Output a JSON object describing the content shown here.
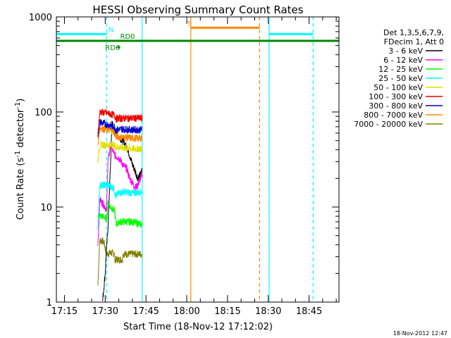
{
  "chart_data": {
    "type": "line",
    "title": "HESSI Observing Summary Count Rates",
    "xlabel": "Start Time (18-Nov-12 17:12:02)",
    "ylabel_main": "Count Rate (s",
    "ylabel_sup1": "-1",
    "ylabel_mid": " detector",
    "ylabel_sup2": "-1",
    "ylabel_end": ")",
    "y_scale": "log",
    "ylim": [
      1,
      1000
    ],
    "xlim_minutes": [
      17.2,
      17.23,
      18.93
    ],
    "x_ticks": [
      {
        "label": "17:15",
        "minutes": 1035
      },
      {
        "label": "17:30",
        "minutes": 1050
      },
      {
        "label": "17:45",
        "minutes": 1065
      },
      {
        "label": "18:00",
        "minutes": 1080
      },
      {
        "label": "18:15",
        "minutes": 1095
      },
      {
        "label": "18:30",
        "minutes": 1110
      },
      {
        "label": "18:45",
        "minutes": 1125
      }
    ],
    "x_range_minutes": [
      1032.03,
      1136.0
    ],
    "y_ticks": [
      {
        "label": "1",
        "value": 1
      },
      {
        "label": "10",
        "value": 10
      },
      {
        "label": "100",
        "value": 100
      },
      {
        "label": "1000",
        "value": 1000
      }
    ],
    "legend": {
      "header1": "Det 1,3,5,6,7,9,",
      "header2": "FDecim 1, Att 0",
      "entries": [
        {
          "label": "3 - 6 keV",
          "color": "#000000"
        },
        {
          "label": "6 - 12 keV",
          "color": "#ff00ff"
        },
        {
          "label": "12 - 25 keV",
          "color": "#00ff00"
        },
        {
          "label": "25 - 50 keV",
          "color": "#00ffff"
        },
        {
          "label": "50 - 100 keV",
          "color": "#e0e000"
        },
        {
          "label": "100 - 300 keV",
          "color": "#ee0000"
        },
        {
          "label": "300 - 800 keV",
          "color": "#0000cc"
        },
        {
          "label": "800 - 7000 keV",
          "color": "#ff8800"
        },
        {
          "label": "7000 - 20000 keV",
          "color": "#808000"
        }
      ]
    },
    "series": [
      {
        "color": "#808000",
        "start": 1047.3,
        "end": 1053.5,
        "points": [
          [
            1047.3,
            1.5
          ],
          [
            1048,
            4.5
          ],
          [
            1049.5,
            4.3
          ],
          [
            1050.5,
            3.2
          ],
          [
            1052,
            3.3
          ],
          [
            1053.5,
            3.2
          ]
        ]
      },
      {
        "color": "#808000",
        "start": 1053.5,
        "end": 1056.5,
        "points": [
          [
            1053.5,
            2.8
          ],
          [
            1055,
            2.8
          ],
          [
            1056.5,
            2.8
          ]
        ]
      },
      {
        "color": "#808000",
        "start": 1056.5,
        "end": 1063.6,
        "points": [
          [
            1056.5,
            3.2
          ],
          [
            1060,
            3.2
          ],
          [
            1063.6,
            3.2
          ]
        ]
      },
      {
        "color": "#000000",
        "start": 1049.0,
        "end": 1063.6,
        "points": [
          [
            1049,
            1.0
          ],
          [
            1050,
            2.0
          ],
          [
            1050.3,
            3.0
          ],
          [
            1051,
            6
          ],
          [
            1052,
            30
          ],
          [
            1052.5,
            80
          ],
          [
            1053.5,
            60
          ],
          [
            1055,
            55
          ],
          [
            1056.5,
            50
          ],
          [
            1058,
            42
          ],
          [
            1059,
            35
          ],
          [
            1060,
            28
          ],
          [
            1061,
            24
          ],
          [
            1062,
            20
          ],
          [
            1063,
            22
          ],
          [
            1063.6,
            25
          ]
        ]
      },
      {
        "color": "#ff00ff",
        "start": 1047.3,
        "end": 1063.6,
        "points": [
          [
            1047.3,
            4
          ],
          [
            1048,
            12
          ],
          [
            1049,
            11
          ],
          [
            1050,
            10
          ],
          [
            1050.5,
            9
          ],
          [
            1051,
            30
          ],
          [
            1052,
            45
          ],
          [
            1053.5,
            35
          ],
          [
            1055,
            33
          ],
          [
            1056.5,
            28
          ],
          [
            1058,
            25
          ],
          [
            1059,
            20
          ],
          [
            1060,
            18
          ],
          [
            1061,
            16
          ],
          [
            1062,
            17
          ],
          [
            1063,
            20
          ],
          [
            1063.6,
            22
          ]
        ]
      },
      {
        "color": "#00ff00",
        "start": 1047.3,
        "end": 1063.6,
        "points": [
          [
            1047.3,
            8
          ],
          [
            1049,
            8
          ],
          [
            1050.5,
            7.5
          ],
          [
            1051,
            11
          ],
          [
            1052,
            10
          ],
          [
            1053.5,
            9
          ],
          [
            1054,
            6.5
          ],
          [
            1055,
            7
          ],
          [
            1056.5,
            7
          ],
          [
            1060,
            7
          ],
          [
            1063.6,
            6.5
          ]
        ]
      },
      {
        "color": "#00ffff",
        "start": 1047.3,
        "end": 1063.6,
        "points": [
          [
            1047.3,
            6
          ],
          [
            1048,
            17
          ],
          [
            1050,
            17
          ],
          [
            1051,
            17
          ],
          [
            1053,
            16
          ],
          [
            1054,
            13
          ],
          [
            1055,
            14
          ],
          [
            1056.5,
            14.5
          ],
          [
            1060,
            14
          ],
          [
            1063.6,
            14.5
          ]
        ]
      },
      {
        "color": "#e0e000",
        "start": 1047.3,
        "end": 1063.6,
        "points": [
          [
            1047.3,
            30
          ],
          [
            1048,
            45
          ],
          [
            1051,
            45
          ],
          [
            1053,
            45
          ],
          [
            1054,
            43
          ],
          [
            1056.5,
            42
          ],
          [
            1060,
            41
          ],
          [
            1063.6,
            41
          ]
        ]
      },
      {
        "color": "#ff8800",
        "start": 1047.3,
        "end": 1063.6,
        "points": [
          [
            1047.3,
            45
          ],
          [
            1048,
            68
          ],
          [
            1051,
            65
          ],
          [
            1053,
            63
          ],
          [
            1054,
            55
          ],
          [
            1056.5,
            54
          ],
          [
            1060,
            53
          ],
          [
            1063.6,
            53
          ]
        ]
      },
      {
        "color": "#0000cc",
        "start": 1047.3,
        "end": 1063.6,
        "points": [
          [
            1047.3,
            55
          ],
          [
            1048,
            78
          ],
          [
            1050,
            75
          ],
          [
            1052,
            72
          ],
          [
            1053.5,
            70
          ],
          [
            1054,
            65
          ],
          [
            1056.5,
            66
          ],
          [
            1060,
            65
          ],
          [
            1063.6,
            65
          ]
        ]
      },
      {
        "color": "#ee0000",
        "start": 1047.3,
        "end": 1063.6,
        "points": [
          [
            1047.3,
            60
          ],
          [
            1048,
            100
          ],
          [
            1050,
            98
          ],
          [
            1052,
            95
          ],
          [
            1053.5,
            92
          ],
          [
            1054,
            85
          ],
          [
            1056.5,
            86
          ],
          [
            1060,
            86
          ],
          [
            1063.6,
            86
          ]
        ]
      }
    ],
    "flag_bars": [
      {
        "label": "N",
        "color": "#00ffff",
        "value": 660,
        "start": 1032.03,
        "end": 1050.5,
        "label_at": 1051.2
      },
      {
        "label": "",
        "color": "#00ffff",
        "value": 660,
        "start": 1110.3,
        "end": 1126.5,
        "label_at": null
      },
      {
        "label": "S",
        "color": "#ff8800",
        "value": 770,
        "start": 1081.5,
        "end": 1106.8,
        "label_at": 1080.2
      },
      {
        "label": "RD0",
        "color": "#008800",
        "value": 560,
        "start": 1032.03,
        "end": 1136.0,
        "label_at": 1055.5
      }
    ],
    "rd6": {
      "label": "RD6",
      "color": "#008800",
      "value": 480,
      "start": 1054.5,
      "end": 1055.5,
      "label_at": 1050.0
    },
    "vertical_lines": [
      {
        "minutes": 1032.03,
        "color": "#00ffff",
        "style": "solid"
      },
      {
        "minutes": 1050.5,
        "color": "#00ffff",
        "style": "dashed"
      },
      {
        "minutes": 1063.6,
        "color": "#00ffff",
        "style": "solid"
      },
      {
        "minutes": 1081.5,
        "color": "#ff8800",
        "style": "solid"
      },
      {
        "minutes": 1106.8,
        "color": "#ff8800",
        "style": "dashed"
      },
      {
        "minutes": 1110.3,
        "color": "#00ffff",
        "style": "solid"
      },
      {
        "minutes": 1126.5,
        "color": "#00ffff",
        "style": "dashed"
      }
    ],
    "timestamp": "18-Nov-2012 12:47"
  }
}
